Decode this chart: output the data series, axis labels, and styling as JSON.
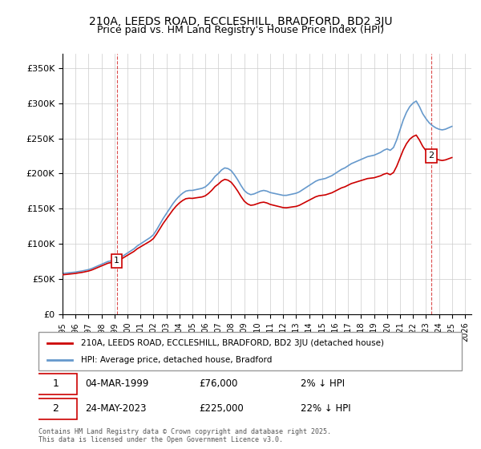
{
  "title_line1": "210A, LEEDS ROAD, ECCLESHILL, BRADFORD, BD2 3JU",
  "title_line2": "Price paid vs. HM Land Registry's House Price Index (HPI)",
  "ylabel_ticks": [
    "£0",
    "£50K",
    "£100K",
    "£150K",
    "£200K",
    "£250K",
    "£300K",
    "£350K"
  ],
  "ytick_values": [
    0,
    50000,
    100000,
    150000,
    200000,
    250000,
    300000,
    350000
  ],
  "ylim": [
    0,
    370000
  ],
  "xlim_start": 1995.0,
  "xlim_end": 2026.5,
  "legend_line1": "210A, LEEDS ROAD, ECCLESHILL, BRADFORD, BD2 3JU (detached house)",
  "legend_line2": "HPI: Average price, detached house, Bradford",
  "sale1_label": "1",
  "sale1_date": "04-MAR-1999",
  "sale1_price": "£76,000",
  "sale1_hpi": "2% ↓ HPI",
  "sale1_year": 1999.17,
  "sale1_value": 76000,
  "sale2_label": "2",
  "sale2_date": "24-MAY-2023",
  "sale2_price": "£225,000",
  "sale2_hpi": "22% ↓ HPI",
  "sale2_year": 2023.39,
  "sale2_value": 225000,
  "hpi_color": "#6699cc",
  "price_color": "#cc0000",
  "background_color": "#ffffff",
  "grid_color": "#cccccc",
  "copyright_text": "Contains HM Land Registry data © Crown copyright and database right 2025.\nThis data is licensed under the Open Government Licence v3.0.",
  "hpi_data_x": [
    1995.0,
    1995.25,
    1995.5,
    1995.75,
    1996.0,
    1996.25,
    1996.5,
    1996.75,
    1997.0,
    1997.25,
    1997.5,
    1997.75,
    1998.0,
    1998.25,
    1998.5,
    1998.75,
    1999.0,
    1999.25,
    1999.5,
    1999.75,
    2000.0,
    2000.25,
    2000.5,
    2000.75,
    2001.0,
    2001.25,
    2001.5,
    2001.75,
    2002.0,
    2002.25,
    2002.5,
    2002.75,
    2003.0,
    2003.25,
    2003.5,
    2003.75,
    2004.0,
    2004.25,
    2004.5,
    2004.75,
    2005.0,
    2005.25,
    2005.5,
    2005.75,
    2006.0,
    2006.25,
    2006.5,
    2006.75,
    2007.0,
    2007.25,
    2007.5,
    2007.75,
    2008.0,
    2008.25,
    2008.5,
    2008.75,
    2009.0,
    2009.25,
    2009.5,
    2009.75,
    2010.0,
    2010.25,
    2010.5,
    2010.75,
    2011.0,
    2011.25,
    2011.5,
    2011.75,
    2012.0,
    2012.25,
    2012.5,
    2012.75,
    2013.0,
    2013.25,
    2013.5,
    2013.75,
    2014.0,
    2014.25,
    2014.5,
    2014.75,
    2015.0,
    2015.25,
    2015.5,
    2015.75,
    2016.0,
    2016.25,
    2016.5,
    2016.75,
    2017.0,
    2017.25,
    2017.5,
    2017.75,
    2018.0,
    2018.25,
    2018.5,
    2018.75,
    2019.0,
    2019.25,
    2019.5,
    2019.75,
    2020.0,
    2020.25,
    2020.5,
    2020.75,
    2021.0,
    2021.25,
    2021.5,
    2021.75,
    2022.0,
    2022.25,
    2022.5,
    2022.75,
    2023.0,
    2023.25,
    2023.5,
    2023.75,
    2024.0,
    2024.25,
    2024.5,
    2024.75,
    2025.0
  ],
  "hpi_data_y": [
    58000,
    58500,
    59000,
    59500,
    60000,
    60800,
    61500,
    62500,
    63500,
    65000,
    67000,
    69000,
    71000,
    73000,
    75000,
    76000,
    77500,
    79000,
    81000,
    84000,
    87000,
    90000,
    93000,
    97000,
    100000,
    103000,
    106000,
    109000,
    113000,
    120000,
    128000,
    136000,
    143000,
    150000,
    157000,
    163000,
    168000,
    172000,
    175000,
    176000,
    176000,
    177000,
    178000,
    179000,
    181000,
    185000,
    190000,
    196000,
    200000,
    205000,
    208000,
    207000,
    204000,
    198000,
    191000,
    183000,
    176000,
    172000,
    170000,
    171000,
    173000,
    175000,
    176000,
    175000,
    173000,
    172000,
    171000,
    170000,
    169000,
    169000,
    170000,
    171000,
    172000,
    174000,
    177000,
    180000,
    183000,
    186000,
    189000,
    191000,
    192000,
    193000,
    195000,
    197000,
    200000,
    203000,
    206000,
    208000,
    211000,
    214000,
    216000,
    218000,
    220000,
    222000,
    224000,
    225000,
    226000,
    228000,
    230000,
    233000,
    235000,
    233000,
    237000,
    248000,
    262000,
    276000,
    287000,
    295000,
    300000,
    303000,
    295000,
    285000,
    278000,
    272000,
    268000,
    265000,
    263000,
    262000,
    263000,
    265000,
    267000
  ],
  "xtick_years": [
    1995,
    1996,
    1997,
    1998,
    1999,
    2000,
    2001,
    2002,
    2003,
    2004,
    2005,
    2006,
    2007,
    2008,
    2009,
    2010,
    2011,
    2012,
    2013,
    2014,
    2015,
    2016,
    2017,
    2018,
    2019,
    2020,
    2021,
    2022,
    2023,
    2024,
    2025,
    2026
  ]
}
